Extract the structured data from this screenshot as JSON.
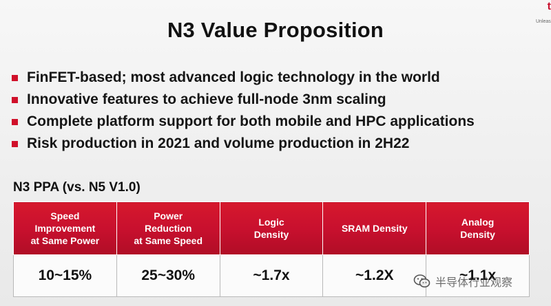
{
  "slide": {
    "title": "N3 Value Proposition",
    "logo_mark": "t",
    "logo_tagline": "Unleash"
  },
  "bullets": [
    "FinFET-based; most advanced logic technology in the world",
    "Innovative features to achieve full-node 3nm scaling",
    "Complete platform support for both mobile and HPC applications",
    "Risk production in 2021 and volume production in 2H22"
  ],
  "ppa": {
    "heading": "N3 PPA (vs. N5 V1.0)",
    "columns": [
      "Speed\nImprovement\nat Same Power",
      "Power\nReduction\nat Same Speed",
      "Logic\nDensity",
      "SRAM Density",
      "Analog\nDensity"
    ],
    "values": [
      "10~15%",
      "25~30%",
      "~1.7x",
      "~1.2X",
      "~1.1x"
    ]
  },
  "watermark": {
    "text": "半导体行业观察",
    "icon": "wechat-icon"
  },
  "colors": {
    "accent_red": "#c8102e",
    "bullet_red": "#d0102a"
  }
}
